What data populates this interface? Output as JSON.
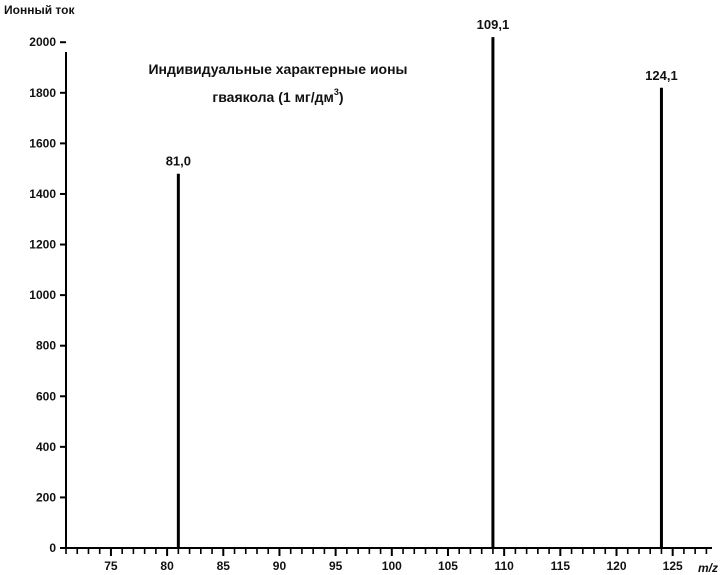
{
  "chart_data": {
    "type": "bar",
    "title_line1": "Индивидуальные характерные ионы",
    "title_line2_prefix": "гваякола (1 мг/дм",
    "title_line2_sup": "3",
    "title_line2_suffix": ")",
    "ylabel": "Ионный ток",
    "xlabel": "m/z",
    "xlim": [
      71,
      128.5
    ],
    "ylim": [
      0,
      2080
    ],
    "x_ticks": [
      75,
      80,
      85,
      90,
      95,
      100,
      105,
      110,
      115,
      120,
      125
    ],
    "y_ticks": [
      0,
      200,
      400,
      600,
      800,
      1000,
      1200,
      1400,
      1600,
      1800,
      2000
    ],
    "points": [
      {
        "x": 81,
        "y": 1480,
        "label": "81,0"
      },
      {
        "x": 109,
        "y": 2020,
        "label": "109,1"
      },
      {
        "x": 124,
        "y": 1820,
        "label": "124,1"
      }
    ],
    "colors": {
      "line": "#000000",
      "axis": "#000000"
    }
  }
}
